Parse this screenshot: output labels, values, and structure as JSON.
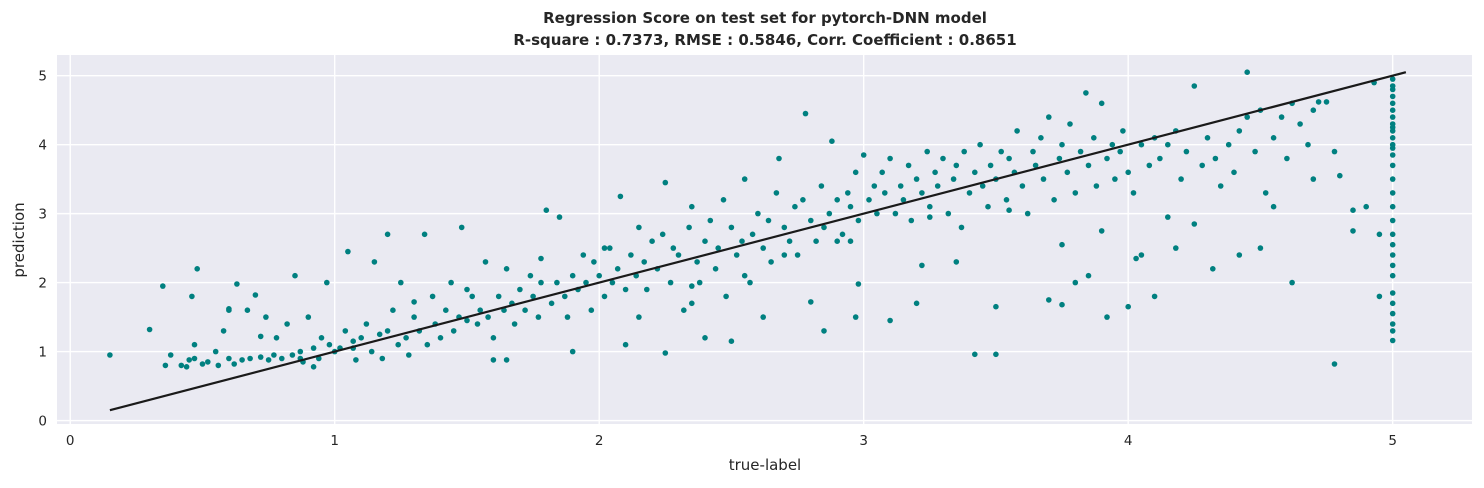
{
  "chart_data": {
    "type": "scatter",
    "title_line1": "Regression Score on test set for pytorch-DNN model",
    "title_line2": "R-square : 0.7373,   RMSE : 0.5846,   Corr. Coefficient : 0.8651",
    "xlabel": "true-label",
    "ylabel": "prediction",
    "xlim": [
      -0.05,
      5.3
    ],
    "ylim": [
      -0.05,
      5.3
    ],
    "xticks": [
      "0",
      "1",
      "2",
      "3",
      "4",
      "5"
    ],
    "yticks": [
      "0",
      "1",
      "2",
      "3",
      "4",
      "5"
    ],
    "grid": true,
    "colors": {
      "background": "#eaeaf2",
      "grid": "#ffffff",
      "points": "#008080",
      "fit_line": "#1a1a1a"
    },
    "fit_line": {
      "x": [
        0.15,
        5.05
      ],
      "y": [
        0.15,
        5.05
      ]
    },
    "series": [
      {
        "marker": "dot",
        "x": [
          0.15,
          0.3,
          0.36,
          0.38,
          0.42,
          0.44,
          0.45,
          0.46,
          0.47,
          0.48,
          0.5,
          0.52,
          0.55,
          0.56,
          0.58,
          0.6,
          0.62,
          0.63,
          0.65,
          0.67,
          0.68,
          0.7,
          0.72,
          0.74,
          0.75,
          0.77,
          0.78,
          0.8,
          0.82,
          0.84,
          0.85,
          0.87,
          0.88,
          0.9,
          0.92,
          0.94,
          0.95,
          0.97,
          0.98,
          1.0,
          1.02,
          1.04,
          1.05,
          1.07,
          1.08,
          1.1,
          1.12,
          1.14,
          1.15,
          1.17,
          1.18,
          1.2,
          1.22,
          1.24,
          1.25,
          1.27,
          1.28,
          1.3,
          1.32,
          1.34,
          1.35,
          1.37,
          1.38,
          1.4,
          1.42,
          1.44,
          1.45,
          1.47,
          1.48,
          1.5,
          1.52,
          1.54,
          1.55,
          1.57,
          1.58,
          1.6,
          1.62,
          1.64,
          1.65,
          1.67,
          1.68,
          1.7,
          1.72,
          1.74,
          1.75,
          1.77,
          1.78,
          1.8,
          1.82,
          1.84,
          1.85,
          1.87,
          1.88,
          1.9,
          1.92,
          1.94,
          1.95,
          1.97,
          1.98,
          2.0,
          2.02,
          2.04,
          2.05,
          2.07,
          2.08,
          2.1,
          2.12,
          2.14,
          2.15,
          2.17,
          2.18,
          2.2,
          2.22,
          2.24,
          2.25,
          2.27,
          2.28,
          2.3,
          2.32,
          2.34,
          2.35,
          2.37,
          2.38,
          2.4,
          2.42,
          2.44,
          2.45,
          2.47,
          2.48,
          2.5,
          2.52,
          2.54,
          2.55,
          2.57,
          2.58,
          2.6,
          2.62,
          2.64,
          2.65,
          2.67,
          2.68,
          2.7,
          2.72,
          2.74,
          2.75,
          2.77,
          2.78,
          2.8,
          2.82,
          2.84,
          2.85,
          2.87,
          2.88,
          2.9,
          2.92,
          2.94,
          2.95,
          2.97,
          2.98,
          3.0,
          3.02,
          3.04,
          3.05,
          3.07,
          3.08,
          3.1,
          3.12,
          3.14,
          3.15,
          3.17,
          3.18,
          3.2,
          3.22,
          3.24,
          3.25,
          3.27,
          3.28,
          3.3,
          3.32,
          3.34,
          3.35,
          3.37,
          3.38,
          3.4,
          3.42,
          3.44,
          3.45,
          3.47,
          3.48,
          3.5,
          3.52,
          3.54,
          3.55,
          3.57,
          3.58,
          3.6,
          3.62,
          3.64,
          3.65,
          3.67,
          3.68,
          3.7,
          3.72,
          3.74,
          3.75,
          3.77,
          3.78,
          3.8,
          3.82,
          3.84,
          3.85,
          3.87,
          3.88,
          3.9,
          3.92,
          3.94,
          3.95,
          3.97,
          3.98,
          4.0,
          4.02,
          4.05,
          4.08,
          4.1,
          4.12,
          4.15,
          4.18,
          4.2,
          4.22,
          4.25,
          4.28,
          4.3,
          4.33,
          4.35,
          4.38,
          4.4,
          4.42,
          4.45,
          4.48,
          4.5,
          4.52,
          4.55,
          4.58,
          4.6,
          4.62,
          4.65,
          4.68,
          4.7,
          4.72,
          4.75,
          4.78,
          4.8,
          4.85,
          4.9,
          4.93,
          4.95,
          0.47,
          0.6,
          0.87,
          1.07,
          1.2,
          1.6,
          1.9,
          2.1,
          2.25,
          2.4,
          2.5,
          2.62,
          2.8,
          2.85,
          2.97,
          3.1,
          3.2,
          3.42,
          3.5,
          3.7,
          3.8,
          3.85,
          3.92,
          4.05,
          4.1,
          4.18,
          4.32,
          4.5,
          4.62,
          4.78,
          0.35,
          0.6,
          0.72,
          0.92,
          1.3,
          1.5,
          1.65,
          1.78,
          2.02,
          2.15,
          2.35,
          2.55,
          2.7,
          2.9,
          2.98,
          3.25,
          3.35,
          3.55,
          3.75,
          3.9,
          4.0,
          4.15,
          4.25,
          4.42,
          4.55,
          4.7,
          4.85,
          4.95,
          2.35,
          2.95,
          3.22,
          3.5,
          3.75,
          4.03,
          4.45,
          5.0,
          5.0,
          5.0,
          5.0,
          5.0,
          5.0,
          5.0,
          5.0,
          5.0,
          5.0,
          5.0,
          5.0,
          5.0,
          5.0,
          5.0,
          5.0,
          5.0,
          5.0,
          5.0,
          5.0,
          5.0,
          5.0,
          5.0,
          5.0,
          5.0,
          5.0,
          5.0,
          5.0,
          5.0,
          5.0
        ],
        "y": [
          0.95,
          1.32,
          0.8,
          0.95,
          0.8,
          0.78,
          0.88,
          1.8,
          0.9,
          2.2,
          0.82,
          0.85,
          1.0,
          0.8,
          1.3,
          0.9,
          0.82,
          1.98,
          0.88,
          1.6,
          0.9,
          1.82,
          0.92,
          1.5,
          0.88,
          0.95,
          1.2,
          0.9,
          1.4,
          0.95,
          2.1,
          1.0,
          0.85,
          1.5,
          1.05,
          0.9,
          1.2,
          2.0,
          1.1,
          1.0,
          1.05,
          1.3,
          2.45,
          1.15,
          0.88,
          1.2,
          1.4,
          1.0,
          2.3,
          1.25,
          0.9,
          1.3,
          1.6,
          1.1,
          2.0,
          1.2,
          0.95,
          1.5,
          1.3,
          2.7,
          1.1,
          1.8,
          1.4,
          1.2,
          1.6,
          2.0,
          1.3,
          1.5,
          2.8,
          1.45,
          1.8,
          1.4,
          1.6,
          2.3,
          1.5,
          1.2,
          1.8,
          1.6,
          2.2,
          1.7,
          1.4,
          1.9,
          1.6,
          2.1,
          1.8,
          1.5,
          2.0,
          3.05,
          1.7,
          2.0,
          2.95,
          1.8,
          1.5,
          2.1,
          1.9,
          2.4,
          2.0,
          1.6,
          2.3,
          2.1,
          1.8,
          2.5,
          2.0,
          2.2,
          3.25,
          1.9,
          2.4,
          2.1,
          2.8,
          2.3,
          1.9,
          2.6,
          2.2,
          2.7,
          3.45,
          2.0,
          2.5,
          2.4,
          1.6,
          2.8,
          3.1,
          2.3,
          2.0,
          2.6,
          2.9,
          2.2,
          2.5,
          3.2,
          1.8,
          2.8,
          2.4,
          2.6,
          3.5,
          2.0,
          2.7,
          3.0,
          2.5,
          2.9,
          2.3,
          3.3,
          3.8,
          2.8,
          2.6,
          3.1,
          2.4,
          3.2,
          4.45,
          2.9,
          2.6,
          3.4,
          2.8,
          3.0,
          4.05,
          3.2,
          2.7,
          3.3,
          3.1,
          3.6,
          2.9,
          3.85,
          3.2,
          3.4,
          3.0,
          3.6,
          3.3,
          3.8,
          3.0,
          3.4,
          3.2,
          3.7,
          2.9,
          3.5,
          3.3,
          3.9,
          3.1,
          3.6,
          3.4,
          3.8,
          3.0,
          3.5,
          3.7,
          2.8,
          3.9,
          3.3,
          3.6,
          4.0,
          3.4,
          3.1,
          3.7,
          3.5,
          3.9,
          3.2,
          3.8,
          3.6,
          4.2,
          3.4,
          3.0,
          3.9,
          3.7,
          4.1,
          3.5,
          4.4,
          3.2,
          3.8,
          4.0,
          3.6,
          4.3,
          3.3,
          3.9,
          4.75,
          3.7,
          4.1,
          3.4,
          4.6,
          3.8,
          4.0,
          3.5,
          3.9,
          4.2,
          3.6,
          3.3,
          4.0,
          3.7,
          4.1,
          3.8,
          4.0,
          4.2,
          3.5,
          3.9,
          4.85,
          3.7,
          4.1,
          3.8,
          3.4,
          4.0,
          3.6,
          4.2,
          4.4,
          3.9,
          4.5,
          3.3,
          4.1,
          4.4,
          3.8,
          4.6,
          4.3,
          4.0,
          4.5,
          4.62,
          4.62,
          3.9,
          3.55,
          3.05,
          3.1,
          4.9,
          1.8,
          1.1,
          1.6,
          0.9,
          1.05,
          2.7,
          0.88,
          1.0,
          1.1,
          0.98,
          1.2,
          1.15,
          1.5,
          1.72,
          1.3,
          1.5,
          1.45,
          1.7,
          0.96,
          1.65,
          1.75,
          2.0,
          2.1,
          1.5,
          2.4,
          1.8,
          2.5,
          2.2,
          2.5,
          2.0,
          0.82,
          1.95,
          1.62,
          1.22,
          0.78,
          1.72,
          1.9,
          0.88,
          2.35,
          2.5,
          1.5,
          1.95,
          2.1,
          2.4,
          2.6,
          1.98,
          2.95,
          2.3,
          3.05,
          2.55,
          2.75,
          1.65,
          2.95,
          2.85,
          2.4,
          3.1,
          3.5,
          2.75,
          2.7,
          1.7,
          2.6,
          2.25,
          0.96,
          1.68,
          2.35,
          5.05,
          4.95,
          4.85,
          4.8,
          4.7,
          4.6,
          4.5,
          4.4,
          4.3,
          4.2,
          4.1,
          4.0,
          3.85,
          3.7,
          3.5,
          3.3,
          3.1,
          2.9,
          2.7,
          2.55,
          2.4,
          2.25,
          2.1,
          1.85,
          1.7,
          1.55,
          1.4,
          1.3,
          1.16,
          4.25,
          3.95
        ]
      }
    ]
  }
}
